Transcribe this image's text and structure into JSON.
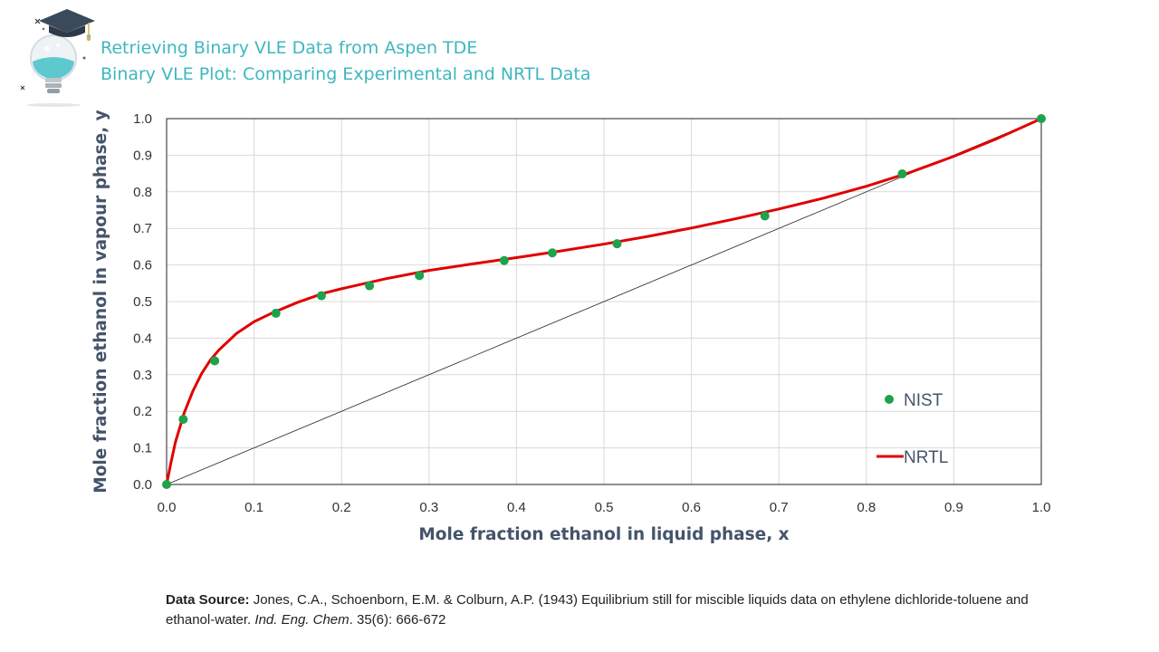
{
  "header": {
    "title_line1": "Retrieving Binary VLE Data from Aspen TDE",
    "title_line2": "Binary VLE Plot: Comparing Experimental and NRTL Data"
  },
  "colors": {
    "title": "#3fb7bf",
    "nist_points": "#1ea24a",
    "nrtl_line": "#e00000",
    "axis_title": "#44546a",
    "gridline": "#d9d9d9",
    "diagonal": "#222222"
  },
  "chart_data": {
    "type": "scatter",
    "title": "",
    "xlabel": "Mole fraction ethanol in liquid phase, x",
    "ylabel": "Mole fraction ethanol in vapour phase, y",
    "xlim": [
      0,
      1
    ],
    "ylim": [
      0,
      1
    ],
    "xticks": [
      "0.0",
      "0.1",
      "0.2",
      "0.3",
      "0.4",
      "0.5",
      "0.6",
      "0.7",
      "0.8",
      "0.9",
      "1.0"
    ],
    "yticks": [
      "0.0",
      "0.1",
      "0.2",
      "0.3",
      "0.4",
      "0.5",
      "0.6",
      "0.7",
      "0.8",
      "0.9",
      "1.0"
    ],
    "grid": true,
    "legend_position": "bottom-right",
    "series": [
      {
        "name": "NIST",
        "kind": "scatter",
        "x": [
          0.0,
          0.019,
          0.055,
          0.125,
          0.177,
          0.232,
          0.289,
          0.386,
          0.441,
          0.515,
          0.684,
          0.841,
          1.0
        ],
        "y": [
          0.0,
          0.178,
          0.338,
          0.468,
          0.516,
          0.543,
          0.571,
          0.612,
          0.633,
          0.658,
          0.734,
          0.849,
          1.0
        ]
      },
      {
        "name": "NRTL",
        "kind": "line",
        "x": [
          0.0,
          0.005,
          0.01,
          0.02,
          0.03,
          0.04,
          0.05,
          0.06,
          0.08,
          0.1,
          0.12,
          0.15,
          0.18,
          0.2,
          0.25,
          0.3,
          0.35,
          0.4,
          0.45,
          0.5,
          0.55,
          0.6,
          0.65,
          0.7,
          0.75,
          0.8,
          0.85,
          0.9,
          0.95,
          1.0
        ],
        "y": [
          0.0,
          0.06,
          0.115,
          0.195,
          0.255,
          0.303,
          0.34,
          0.368,
          0.413,
          0.445,
          0.468,
          0.498,
          0.523,
          0.535,
          0.562,
          0.585,
          0.603,
          0.62,
          0.638,
          0.657,
          0.678,
          0.701,
          0.726,
          0.753,
          0.782,
          0.815,
          0.853,
          0.897,
          0.946,
          1.0
        ]
      },
      {
        "name": "",
        "kind": "diagonal",
        "x": [
          0,
          1
        ],
        "y": [
          0,
          1
        ]
      }
    ]
  },
  "source": {
    "label": "Data Source:",
    "text_before_journal": " Jones, C.A., Schoenborn, E.M. & Colburn, A.P. (1943) Equilibrium still for miscible liquids data on ethylene dichloride-toluene and ethanol-water. ",
    "journal": "Ind. Eng. Chem",
    "text_after_journal": ". 35(6): 666-672"
  }
}
